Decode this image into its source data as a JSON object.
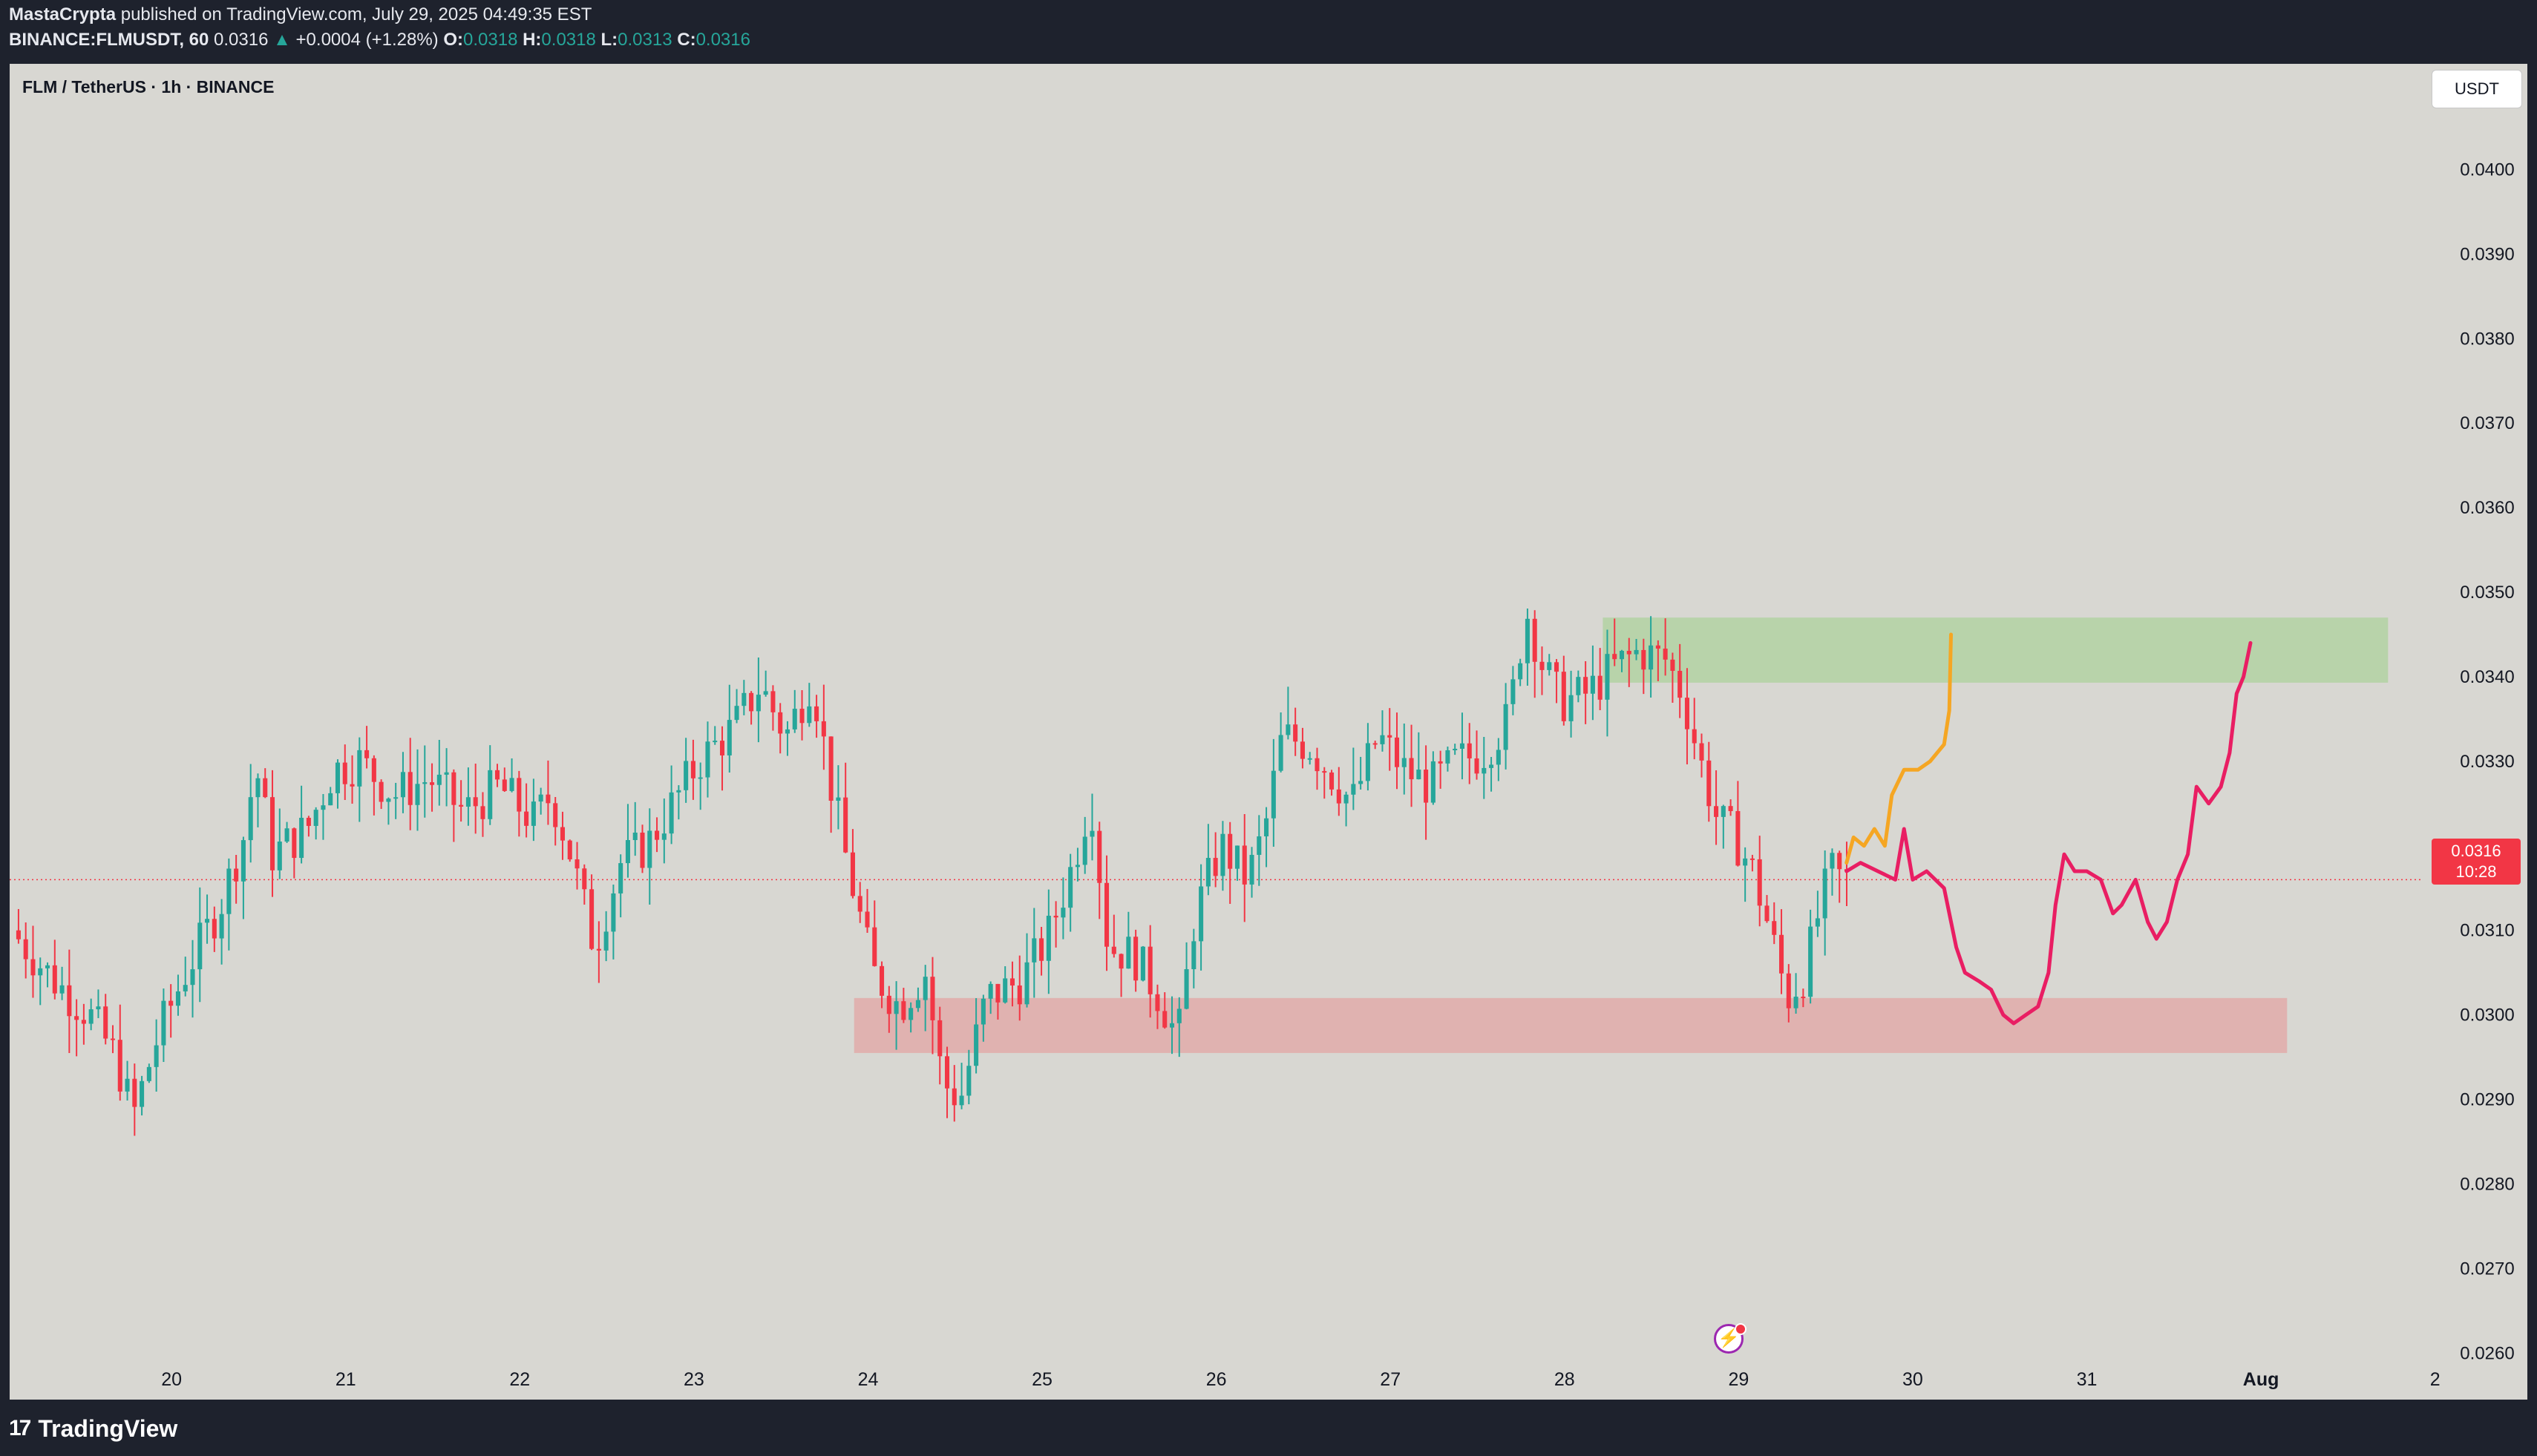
{
  "header": {
    "author": "MastaCrypta",
    "published": "published on TradingView.com, July 29, 2025 04:49:35 EST",
    "symbol": "BINANCE:FLMUSDT, 60",
    "last": "0.0316",
    "change_arrow": "▲",
    "change": "+0.0004 (+1.28%)",
    "o_label": "O:",
    "o_value": "0.0318",
    "h_label": "H:",
    "h_value": "0.0318",
    "l_label": "L:",
    "l_value": "0.0313",
    "c_label": "C:",
    "c_value": "0.0316"
  },
  "legend": {
    "title": "FLM / TetherUS · 1h · BINANCE"
  },
  "currency_button": "USDT",
  "price_badge": {
    "price": "0.0316",
    "countdown": "10:28"
  },
  "footer": {
    "logo_text": "TradingView",
    "logo_icon": "tradingview-logo-icon"
  },
  "colors": {
    "up": "#26a69a",
    "down": "#f23645",
    "background": "#d8d7d2",
    "resistance_zone": "#b6d3a8",
    "support_zone": "#e0b0ae",
    "projection_orange": "#f5a623",
    "projection_pink": "#e91e63"
  },
  "chart_data": {
    "type": "candlestick",
    "ylim": [
      0.02545,
      0.04125
    ],
    "y_ticks": [
      "0.0400",
      "0.0390",
      "0.0380",
      "0.0370",
      "0.0360",
      "0.0350",
      "0.0340",
      "0.0330",
      "0.0320",
      "0.0310",
      "0.0300",
      "0.0290",
      "0.0280",
      "0.0270",
      "0.0260"
    ],
    "x_ticks": [
      "20",
      "21",
      "22",
      "23",
      "24",
      "25",
      "26",
      "27",
      "28",
      "29",
      "30",
      "31",
      "Aug",
      "2"
    ],
    "x_tick_days": [
      20,
      21,
      22,
      23,
      24,
      25,
      26,
      27,
      28,
      29,
      30,
      31,
      32,
      33
    ],
    "xlim_days": [
      19.07,
      33.53
    ],
    "last_price": 0.0316,
    "price_path": [
      [
        19.1,
        0.031
      ],
      [
        19.35,
        0.0304
      ],
      [
        19.55,
        0.03
      ],
      [
        19.7,
        0.0295
      ],
      [
        19.8,
        0.0288
      ],
      [
        19.95,
        0.0298
      ],
      [
        20.1,
        0.0305
      ],
      [
        20.3,
        0.0313
      ],
      [
        20.45,
        0.0322
      ],
      [
        20.5,
        0.033
      ],
      [
        20.6,
        0.0319
      ],
      [
        20.8,
        0.0322
      ],
      [
        20.95,
        0.0329
      ],
      [
        21.1,
        0.033
      ],
      [
        21.3,
        0.0326
      ],
      [
        21.5,
        0.0328
      ],
      [
        21.7,
        0.0324
      ],
      [
        21.9,
        0.0327
      ],
      [
        22.1,
        0.0323
      ],
      [
        22.2,
        0.0326
      ],
      [
        22.3,
        0.032
      ],
      [
        22.4,
        0.0312
      ],
      [
        22.45,
        0.0308
      ],
      [
        22.6,
        0.0318
      ],
      [
        22.75,
        0.032
      ],
      [
        22.9,
        0.0325
      ],
      [
        23.05,
        0.033
      ],
      [
        23.25,
        0.0334
      ],
      [
        23.4,
        0.0339
      ],
      [
        23.55,
        0.0333
      ],
      [
        23.7,
        0.034
      ],
      [
        23.8,
        0.0328
      ],
      [
        23.9,
        0.0318
      ],
      [
        24.05,
        0.0305
      ],
      [
        24.2,
        0.0301
      ],
      [
        24.35,
        0.0305
      ],
      [
        24.45,
        0.0292
      ],
      [
        24.55,
        0.029
      ],
      [
        24.7,
        0.0302
      ],
      [
        24.9,
        0.0304
      ],
      [
        25.05,
        0.0309
      ],
      [
        25.2,
        0.0318
      ],
      [
        25.3,
        0.0326
      ],
      [
        25.4,
        0.0308
      ],
      [
        25.55,
        0.0307
      ],
      [
        25.7,
        0.0302
      ],
      [
        25.8,
        0.0297
      ],
      [
        25.9,
        0.0312
      ],
      [
        26.05,
        0.032
      ],
      [
        26.2,
        0.0316
      ],
      [
        26.3,
        0.0322
      ],
      [
        26.4,
        0.0333
      ],
      [
        26.55,
        0.0332
      ],
      [
        26.7,
        0.0328
      ],
      [
        26.8,
        0.0325
      ],
      [
        26.95,
        0.0333
      ],
      [
        27.1,
        0.0329
      ],
      [
        27.25,
        0.0327
      ],
      [
        27.4,
        0.033
      ],
      [
        27.55,
        0.0331
      ],
      [
        27.7,
        0.0335
      ],
      [
        27.8,
        0.0348
      ],
      [
        27.9,
        0.0341
      ],
      [
        28.0,
        0.0337
      ],
      [
        28.15,
        0.0338
      ],
      [
        28.3,
        0.0341
      ],
      [
        28.45,
        0.0343
      ],
      [
        28.6,
        0.0342
      ],
      [
        28.7,
        0.0338
      ],
      [
        28.8,
        0.033
      ],
      [
        28.9,
        0.0323
      ],
      [
        29.0,
        0.0321
      ],
      [
        29.1,
        0.0317
      ],
      [
        29.2,
        0.031
      ],
      [
        29.3,
        0.0302
      ],
      [
        29.4,
        0.0305
      ],
      [
        29.48,
        0.0312
      ],
      [
        29.55,
        0.0317
      ],
      [
        29.62,
        0.0316
      ]
    ],
    "zones": [
      {
        "name": "resistance",
        "x0": 28.22,
        "x1": 32.73,
        "y0": 0.03393,
        "y1": 0.0347
      },
      {
        "name": "support",
        "x0": 23.92,
        "x1": 32.15,
        "y0": 0.02955,
        "y1": 0.0302
      }
    ],
    "projections": [
      {
        "name": "orange",
        "points": [
          [
            29.62,
            0.0318
          ],
          [
            29.66,
            0.0321
          ],
          [
            29.72,
            0.032
          ],
          [
            29.78,
            0.0322
          ],
          [
            29.84,
            0.032
          ],
          [
            29.88,
            0.0326
          ],
          [
            29.95,
            0.0329
          ],
          [
            30.03,
            0.0329
          ],
          [
            30.1,
            0.033
          ],
          [
            30.18,
            0.0332
          ],
          [
            30.21,
            0.0336
          ],
          [
            30.22,
            0.0345
          ]
        ]
      },
      {
        "name": "pink",
        "points": [
          [
            29.62,
            0.0317
          ],
          [
            29.7,
            0.0318
          ],
          [
            29.8,
            0.0317
          ],
          [
            29.9,
            0.0316
          ],
          [
            29.95,
            0.0322
          ],
          [
            30.0,
            0.0316
          ],
          [
            30.08,
            0.0317
          ],
          [
            30.18,
            0.0315
          ],
          [
            30.25,
            0.0308
          ],
          [
            30.3,
            0.0305
          ],
          [
            30.38,
            0.0304
          ],
          [
            30.45,
            0.0303
          ],
          [
            30.52,
            0.03
          ],
          [
            30.58,
            0.0299
          ],
          [
            30.65,
            0.03
          ],
          [
            30.72,
            0.0301
          ],
          [
            30.78,
            0.0305
          ],
          [
            30.82,
            0.0313
          ],
          [
            30.87,
            0.0319
          ],
          [
            30.93,
            0.0317
          ],
          [
            31.0,
            0.0317
          ],
          [
            31.08,
            0.0316
          ],
          [
            31.15,
            0.0312
          ],
          [
            31.2,
            0.0313
          ],
          [
            31.28,
            0.0316
          ],
          [
            31.35,
            0.0311
          ],
          [
            31.4,
            0.0309
          ],
          [
            31.46,
            0.0311
          ],
          [
            31.52,
            0.0316
          ],
          [
            31.58,
            0.0319
          ],
          [
            31.63,
            0.0327
          ],
          [
            31.7,
            0.0325
          ],
          [
            31.77,
            0.0327
          ],
          [
            31.82,
            0.0331
          ],
          [
            31.86,
            0.0338
          ],
          [
            31.9,
            0.034
          ],
          [
            31.94,
            0.0344
          ]
        ]
      }
    ]
  }
}
